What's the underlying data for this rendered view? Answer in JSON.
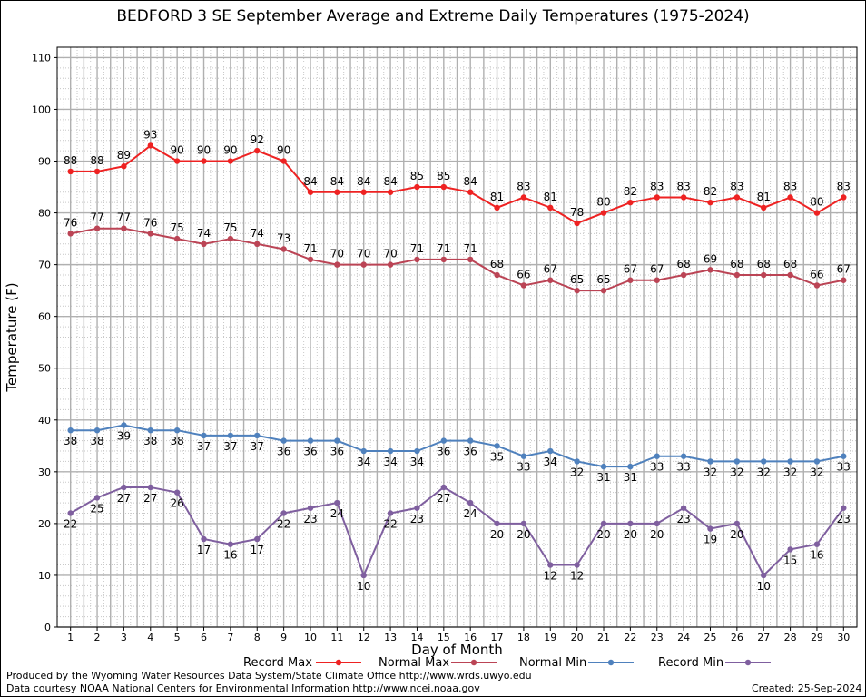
{
  "title": "BEDFORD 3 SE September Average and Extreme Daily Temperatures (1975-2024)",
  "footer": {
    "produced_by": "Produced by the Wyoming Water Resources Data System/State Climate Office http://www.wrds.uwyo.edu",
    "data_courtesy": "Data courtesy NOAA National Centers for Environmental Information http://www.ncei.noaa.gov",
    "created": "Created: 25-Sep-2024"
  },
  "chart_data": {
    "type": "line",
    "xlabel": "Day of Month",
    "ylabel": "Temperature (F)",
    "xlim": [
      0.5,
      30.5
    ],
    "ylim": [
      0,
      112
    ],
    "y_ticks": [
      0,
      10,
      20,
      30,
      40,
      50,
      60,
      70,
      80,
      90,
      100,
      110
    ],
    "x": [
      1,
      2,
      3,
      4,
      5,
      6,
      7,
      8,
      9,
      10,
      11,
      12,
      13,
      14,
      15,
      16,
      17,
      18,
      19,
      20,
      21,
      22,
      23,
      24,
      25,
      26,
      27,
      28,
      29,
      30
    ],
    "grid": true,
    "legend_position": "bottom",
    "series": [
      {
        "name": "Record Max",
        "color": "#ee2222",
        "values": [
          88,
          88,
          89,
          93,
          90,
          90,
          90,
          92,
          90,
          84,
          84,
          84,
          84,
          85,
          85,
          84,
          81,
          83,
          81,
          78,
          80,
          82,
          83,
          83,
          82,
          83,
          81,
          83,
          80,
          83
        ]
      },
      {
        "name": "Normal Max",
        "color": "#bb4455",
        "values": [
          76,
          77,
          77,
          76,
          75,
          74,
          75,
          74,
          73,
          71,
          70,
          70,
          70,
          71,
          71,
          71,
          68,
          66,
          67,
          65,
          65,
          67,
          67,
          68,
          69,
          68,
          68,
          68,
          66,
          67
        ]
      },
      {
        "name": "Normal Min",
        "color": "#4f81bd",
        "values": [
          38,
          38,
          39,
          38,
          38,
          37,
          37,
          37,
          36,
          36,
          36,
          34,
          34,
          34,
          36,
          36,
          35,
          33,
          34,
          32,
          31,
          31,
          33,
          33,
          32,
          32,
          32,
          32,
          32,
          33
        ]
      },
      {
        "name": "Record Min",
        "color": "#7f5f9f",
        "values": [
          22,
          25,
          27,
          27,
          26,
          17,
          16,
          17,
          22,
          23,
          24,
          10,
          22,
          23,
          27,
          24,
          20,
          20,
          12,
          12,
          20,
          20,
          20,
          23,
          19,
          20,
          10,
          15,
          16,
          23
        ]
      }
    ]
  }
}
